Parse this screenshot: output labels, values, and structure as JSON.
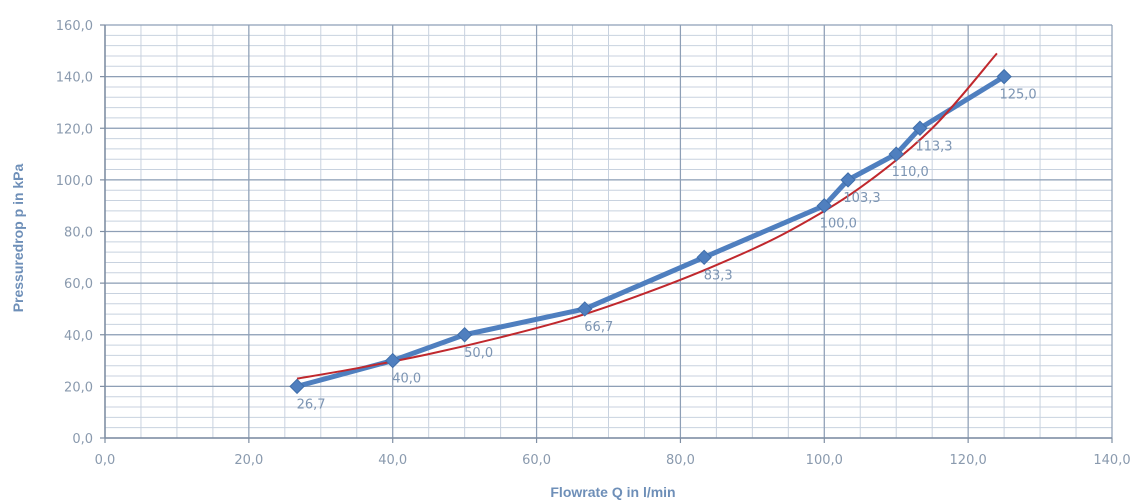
{
  "chart_data": {
    "type": "line",
    "xlabel": "Flowrate Q in l/min",
    "ylabel": "Pressuredrop p in kPa",
    "xlim": [
      0,
      140
    ],
    "ylim": [
      0,
      160
    ],
    "x_ticks": [
      0,
      20,
      40,
      60,
      80,
      100,
      120,
      140
    ],
    "y_ticks": [
      0,
      20,
      40,
      60,
      80,
      100,
      120,
      140,
      160
    ],
    "x_tick_labels": [
      "0,0",
      "20,0",
      "40,0",
      "60,0",
      "80,0",
      "100,0",
      "120,0",
      "140,0"
    ],
    "y_tick_labels": [
      "0,0",
      "20,0",
      "40,0",
      "60,0",
      "80,0",
      "100,0",
      "120,0",
      "140,0",
      "160,0"
    ],
    "grid": true,
    "legend": "none",
    "series": [
      {
        "color": "#4f7fbf",
        "marker": "diamond",
        "x": [
          26.7,
          40.0,
          50.0,
          66.7,
          83.3,
          100.0,
          103.3,
          110.0,
          113.3,
          125.0
        ],
        "y": [
          20,
          30,
          40,
          50,
          70,
          90,
          100,
          110,
          120,
          140
        ],
        "point_labels": [
          "26,7",
          "40,0",
          "50,0",
          "66,7",
          "83,3",
          "100,0",
          "103,3",
          "110,0",
          "113,3",
          "125,0"
        ]
      },
      {
        "color": "#c0282d",
        "marker": "none",
        "x": [
          26.7,
          35,
          45,
          55,
          65,
          75,
          85,
          95,
          105,
          115,
          124
        ],
        "y": [
          23,
          27,
          32.5,
          39,
          46.5,
          56,
          67,
          80,
          97,
          120,
          149
        ]
      }
    ]
  }
}
